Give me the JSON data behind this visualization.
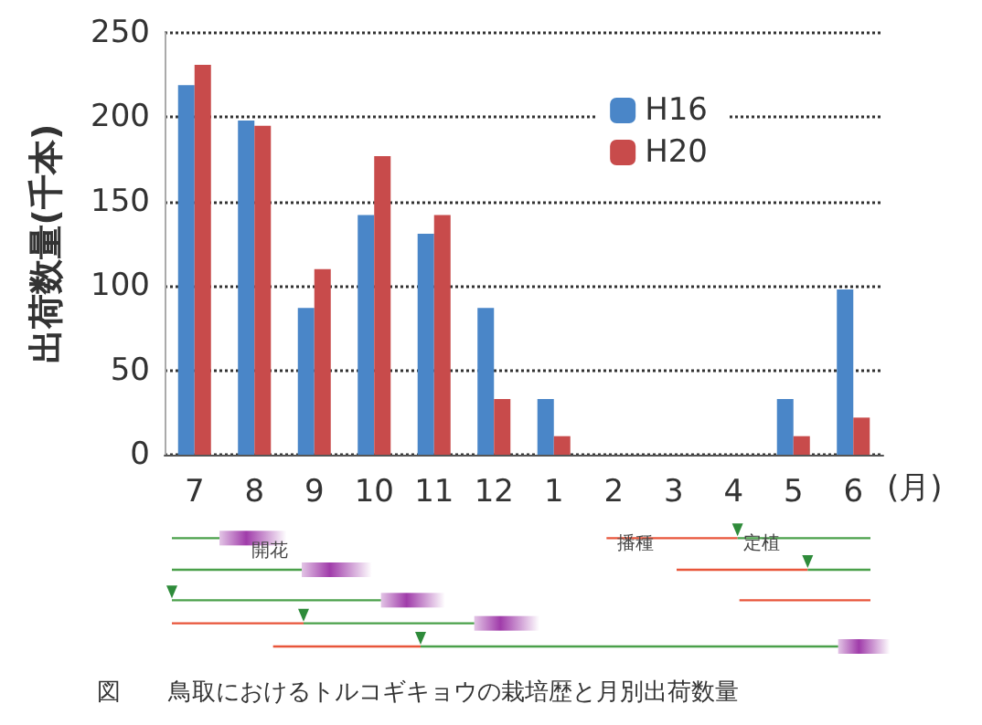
{
  "chart_data": {
    "type": "bar",
    "title": "図　　鳥取におけるトルコギキョウの栽培歴と月別出荷数量",
    "ylabel": "出荷数量(千本)",
    "xlabel": "(月)",
    "categories": [
      "7",
      "8",
      "9",
      "10",
      "11",
      "12",
      "1",
      "2",
      "3",
      "4",
      "5",
      "6"
    ],
    "series": [
      {
        "name": "H16",
        "color": "#4a86c8",
        "values": [
          219,
          198,
          87,
          142,
          131,
          87,
          33,
          0,
          0,
          0,
          33,
          98
        ]
      },
      {
        "name": "H20",
        "color": "#c84b4b",
        "values": [
          231,
          195,
          110,
          177,
          142,
          33,
          11,
          0,
          0,
          0,
          11,
          22
        ]
      }
    ],
    "ylim": [
      0,
      250
    ],
    "yticks": [
      0,
      50,
      100,
      150,
      200,
      250
    ],
    "grid": "y",
    "legend": "top right",
    "annotations": [
      "開花",
      "播種",
      "定植"
    ]
  }
}
